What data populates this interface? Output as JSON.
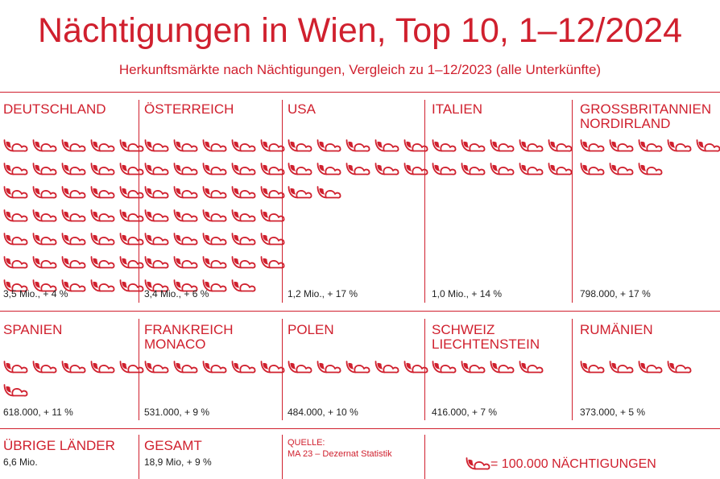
{
  "title": "Nächtigungen in Wien, Top 10, 1–12/2024",
  "subtitle": "Herkunftsmärkte nach Nächtigungen, Vergleich zu 1–12/2023 (alle Unterkünfte)",
  "colors": {
    "accent": "#d0202e",
    "text_dark": "#222222"
  },
  "chart_data": {
    "type": "pictogram",
    "unit": 100000,
    "icon": "bed-icon",
    "markets": [
      {
        "name": "DEUTSCHLAND",
        "icons": 35,
        "value_label": "3,5 Mio., + 4 %"
      },
      {
        "name": "ÖSTERREICH",
        "icons": 34,
        "value_label": "3,4 Mio., + 6 %"
      },
      {
        "name": "USA",
        "icons": 12,
        "value_label": "1,2 Mio., + 17 %"
      },
      {
        "name": "ITALIEN",
        "icons": 10,
        "value_label": "1,0 Mio., + 14 %"
      },
      {
        "name": "GROSSBRITANNIEN\nNORDIRLAND",
        "icons": 8,
        "value_label": "798.000, + 17 %"
      },
      {
        "name": "SPANIEN",
        "icons": 6,
        "value_label": "618.000, + 11 %"
      },
      {
        "name": "FRANKREICH\nMONACO",
        "icons": 5,
        "value_label": "531.000, + 9 %"
      },
      {
        "name": "POLEN",
        "icons": 5,
        "value_label": "484.000, + 10 %"
      },
      {
        "name": "SCHWEIZ\nLIECHTENSTEIN",
        "icons": 4,
        "value_label": "416.000, + 7 %"
      },
      {
        "name": "RUMÄNIEN",
        "icons": 4,
        "value_label": "373.000, + 5 %"
      }
    ],
    "other": {
      "name": "ÜBRIGE LÄNDER",
      "value_label": "6,6 Mio."
    },
    "total": {
      "name": "GESAMT",
      "value_label": "18,9 Mio, + 9 %"
    }
  },
  "source": {
    "label": "QUELLE:",
    "text": "MA 23 – Dezernat Statistik"
  },
  "legend": {
    "text": "= 100.000 NÄCHTIGUNGEN"
  }
}
